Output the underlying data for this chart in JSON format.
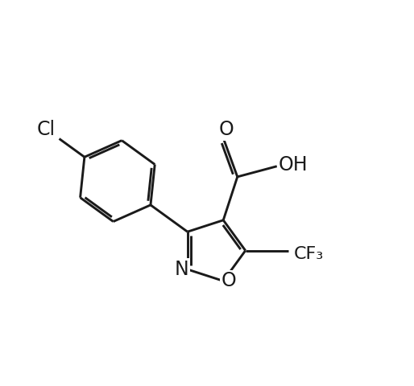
{
  "background_color": "#ffffff",
  "line_color": "#1a1a1a",
  "line_width": 2.1,
  "font_size_main": 17,
  "figsize": [
    5.14,
    4.8
  ],
  "dpi": 100,
  "xlim": [
    -1,
    11
  ],
  "ylim": [
    -1,
    11
  ]
}
